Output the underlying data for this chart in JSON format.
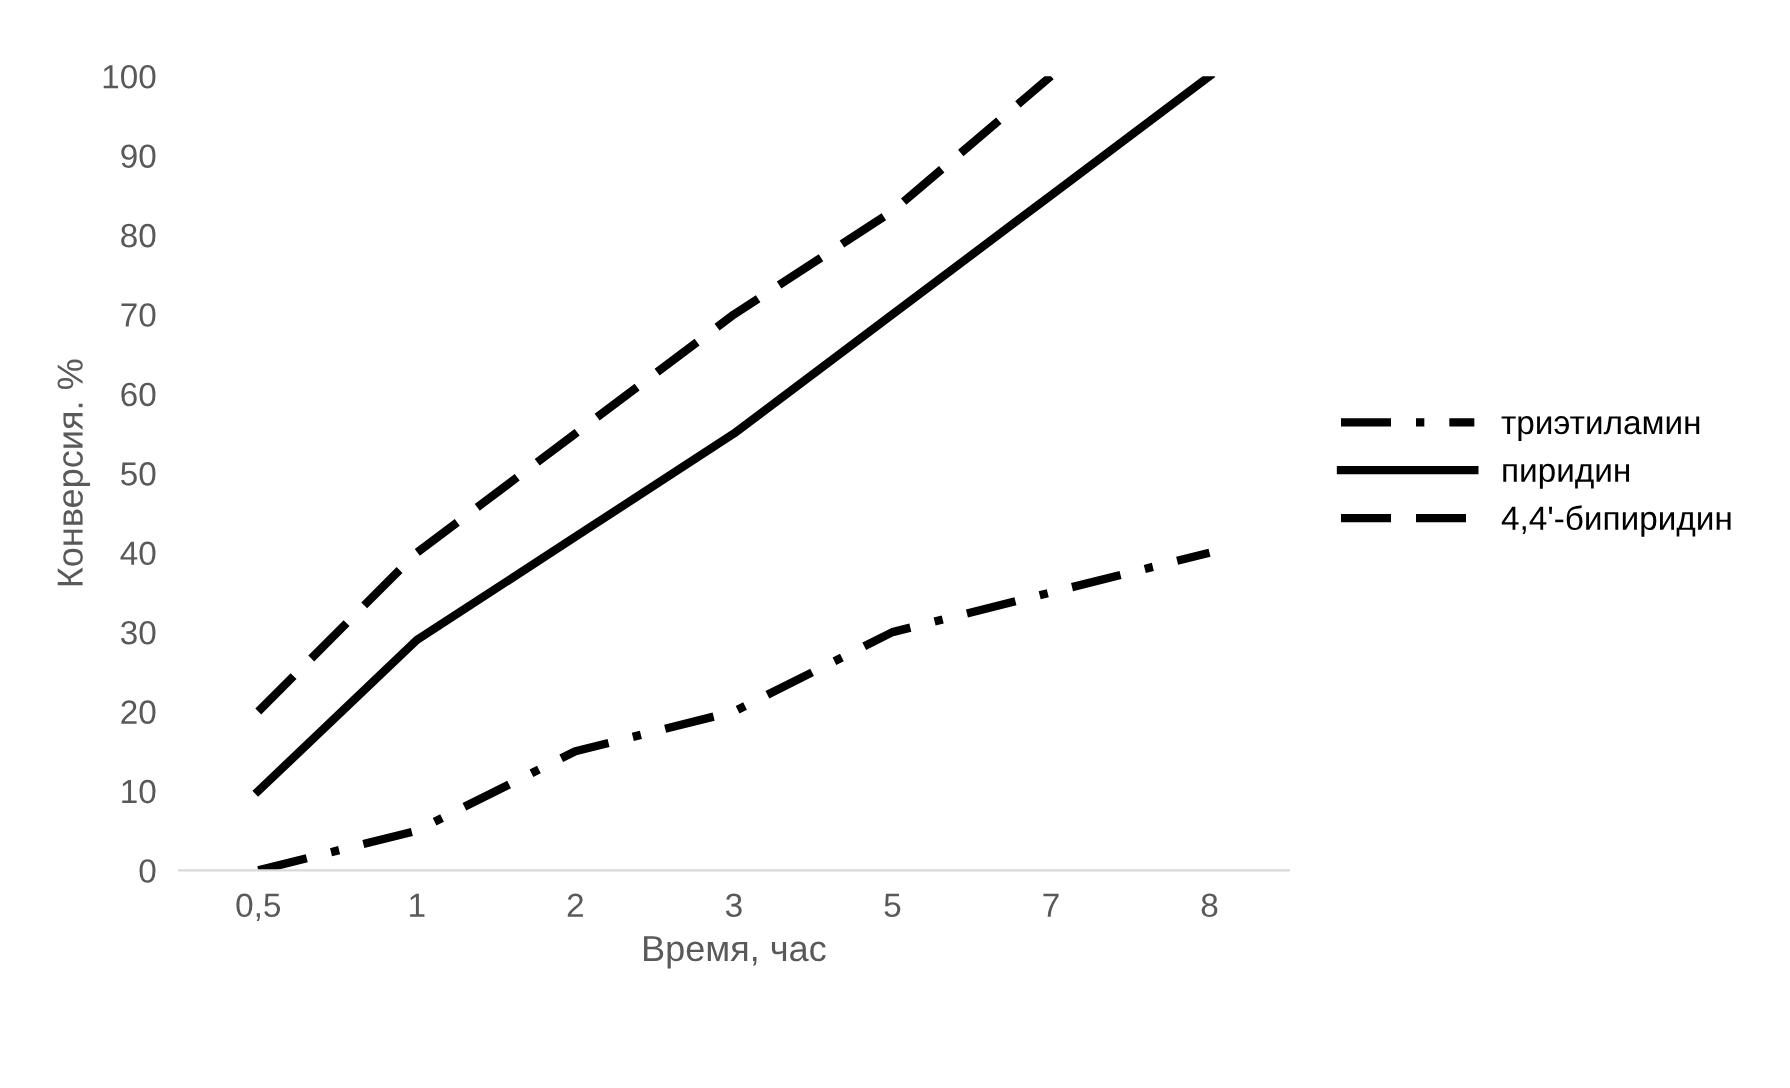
{
  "chart_data": {
    "type": "line",
    "xlabel": "Время, час",
    "ylabel": "Конверсия. %",
    "categories": [
      "0,5",
      "1",
      "2",
      "3",
      "5",
      "7",
      "8"
    ],
    "series": [
      {
        "name": "триэтиламин",
        "color": "#000000",
        "line_style": "dashdot",
        "values": [
          0,
          5,
          15,
          20,
          30,
          35,
          40
        ]
      },
      {
        "name": "пиридин",
        "color": "#000000",
        "line_style": "solid",
        "values": [
          10,
          29,
          42,
          55,
          70,
          85,
          100
        ]
      },
      {
        "name": "4,4'-бипиридин",
        "color": "#000000",
        "line_style": "dashed",
        "values": [
          20,
          40,
          55,
          70,
          83,
          100,
          null
        ]
      }
    ],
    "ylim": [
      0,
      100
    ],
    "yticks": [
      0,
      10,
      20,
      30,
      40,
      50,
      60,
      70,
      80,
      90,
      100
    ],
    "grid": false,
    "legend": "right",
    "marker": "none"
  }
}
